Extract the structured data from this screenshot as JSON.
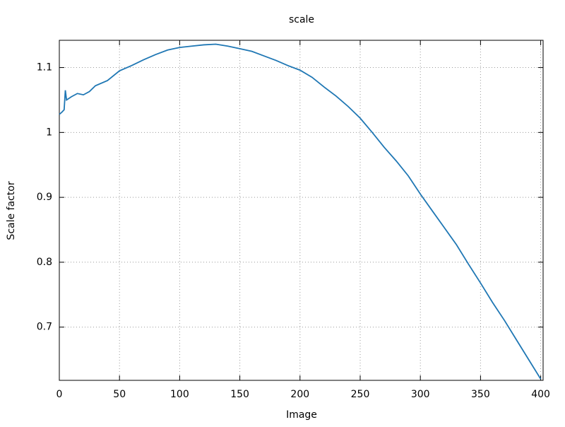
{
  "chart_data": {
    "type": "line",
    "title": "scale",
    "x_label": "Image",
    "y_label": "Scale factor",
    "x": [
      0,
      2,
      4,
      5,
      6,
      10,
      15,
      20,
      25,
      30,
      40,
      50,
      60,
      70,
      80,
      90,
      100,
      110,
      120,
      130,
      140,
      150,
      160,
      170,
      180,
      190,
      200,
      210,
      220,
      230,
      240,
      250,
      260,
      270,
      280,
      290,
      300,
      310,
      320,
      330,
      340,
      350,
      360,
      370,
      380,
      390,
      400
    ],
    "values": [
      1.028,
      1.031,
      1.035,
      1.065,
      1.05,
      1.055,
      1.06,
      1.058,
      1.063,
      1.072,
      1.08,
      1.095,
      1.103,
      1.112,
      1.12,
      1.127,
      1.131,
      1.133,
      1.135,
      1.136,
      1.133,
      1.129,
      1.125,
      1.118,
      1.111,
      1.103,
      1.096,
      1.085,
      1.07,
      1.056,
      1.04,
      1.022,
      1.0,
      0.977,
      0.956,
      0.933,
      0.905,
      0.879,
      0.853,
      0.827,
      0.797,
      0.768,
      0.738,
      0.71,
      0.68,
      0.65,
      0.62
    ],
    "color": "#1f77b4",
    "xlim": [
      0,
      402
    ],
    "xticks": [
      0,
      50,
      100,
      150,
      200,
      250,
      300,
      350,
      400
    ],
    "ylim": [
      0.618,
      1.142
    ],
    "yticks": [
      0.7,
      0.8,
      0.9,
      1,
      1.1
    ],
    "grid": true
  }
}
